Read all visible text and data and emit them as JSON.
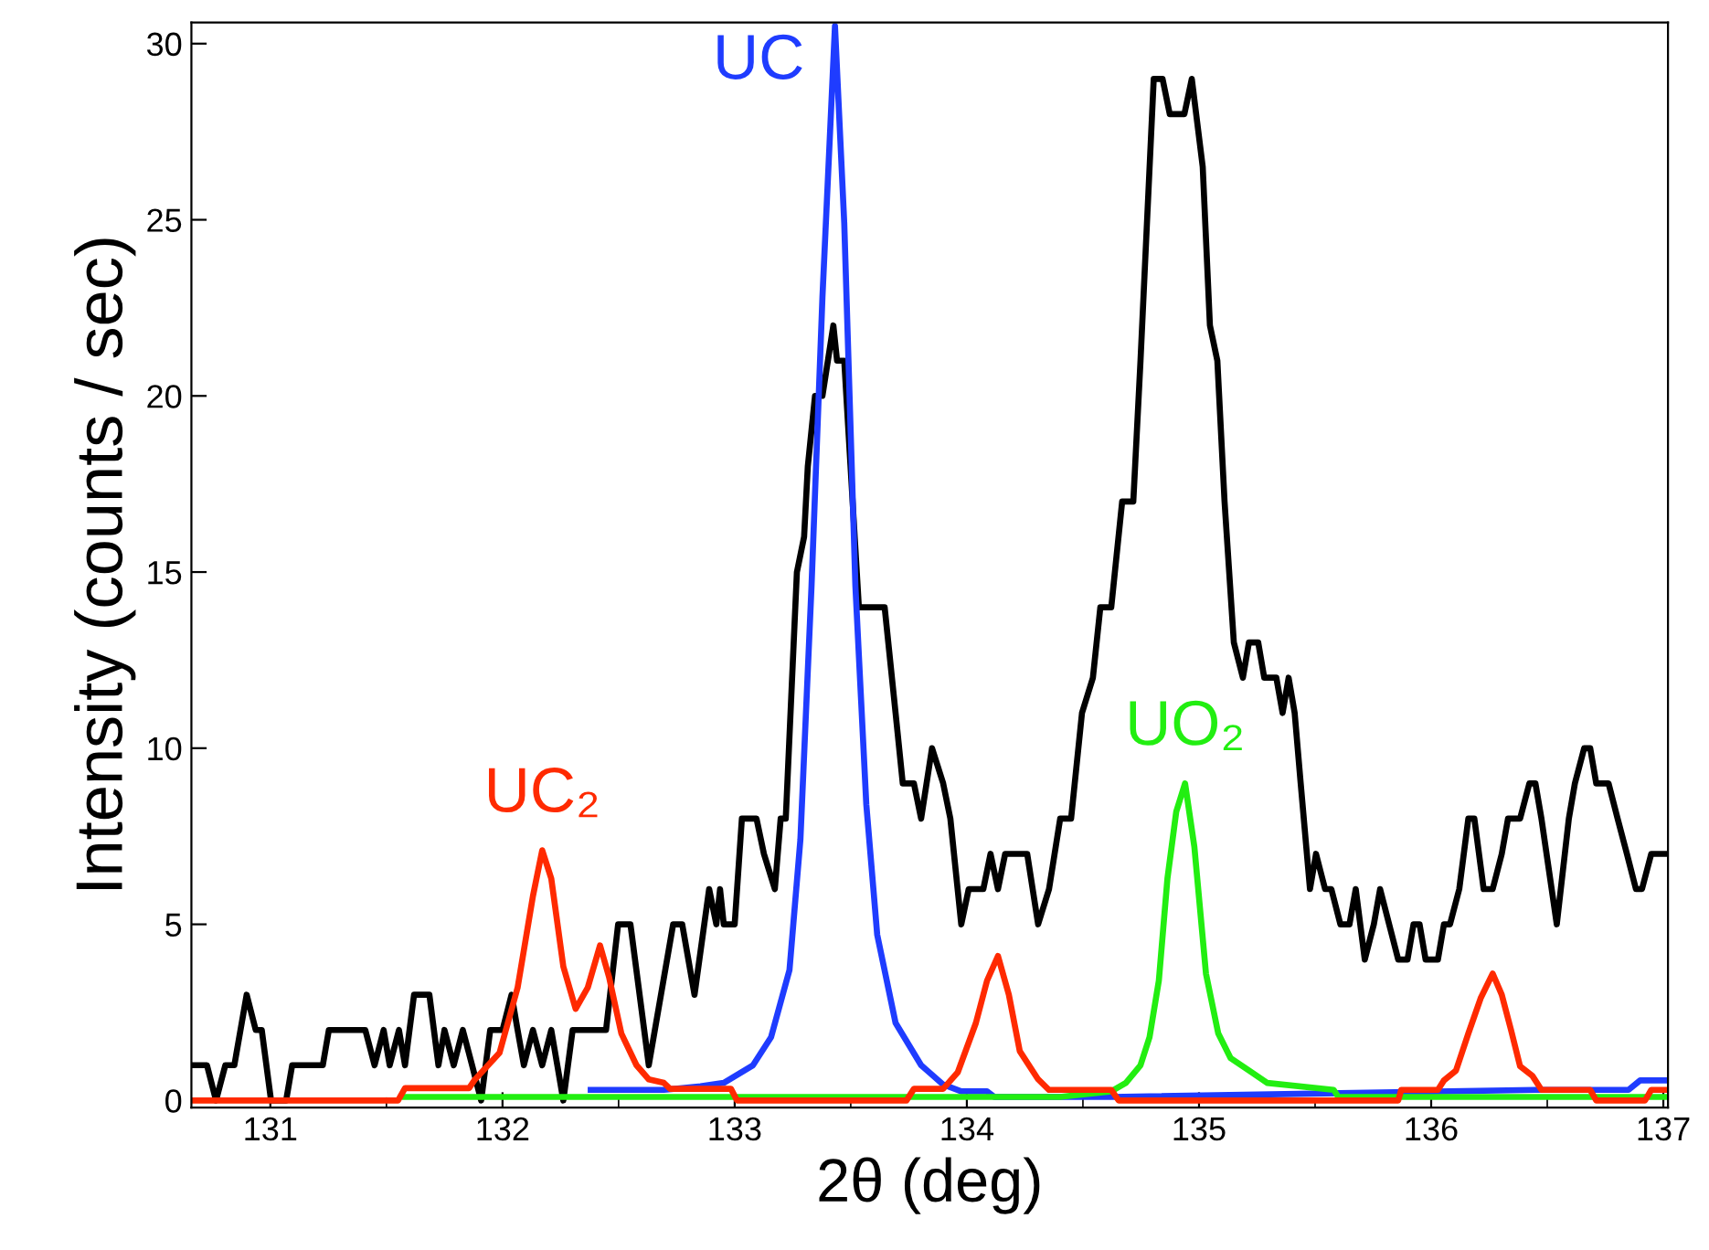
{
  "chart_data": {
    "type": "line",
    "xlabel": "2θ (deg)",
    "ylabel": "Intensity (counts / sec)",
    "xlim": [
      130.66,
      137.02
    ],
    "xticks": [
      131,
      132,
      133,
      134,
      135,
      136,
      137
    ],
    "ylim": [
      -0.2,
      30.6
    ],
    "yticks": [
      0,
      5,
      10,
      15,
      20,
      25,
      30
    ],
    "grid": false,
    "legend": false,
    "marker": "none",
    "line_style": "solid",
    "series": [
      {
        "color": "#000000",
        "x": [
          130.675,
          130.727,
          130.766,
          130.806,
          130.845,
          130.898,
          130.937,
          130.963,
          131.003,
          131.068,
          131.094,
          131.226,
          131.252,
          131.409,
          131.449,
          131.488,
          131.514,
          131.554,
          131.58,
          131.619,
          131.685,
          131.724,
          131.75,
          131.79,
          131.829,
          131.869,
          131.908,
          131.947,
          132.0,
          132.039,
          132.065,
          132.092,
          132.131,
          132.171,
          132.21,
          132.236,
          132.262,
          132.302,
          132.446,
          132.498,
          132.551,
          132.63,
          132.735,
          132.774,
          132.827,
          132.89,
          132.921,
          132.937,
          132.953,
          133.0,
          133.031,
          133.094,
          133.126,
          133.173,
          133.198,
          133.22,
          133.268,
          133.299,
          133.315,
          133.346,
          133.378,
          133.425,
          133.441,
          133.472,
          133.535,
          133.646,
          133.693,
          133.724,
          133.772,
          133.803,
          133.85,
          133.898,
          133.929,
          133.976,
          134.008,
          134.071,
          134.102,
          134.134,
          134.165,
          134.26,
          134.307,
          134.354,
          134.402,
          134.449,
          134.496,
          134.543,
          134.575,
          134.622,
          134.669,
          134.717,
          134.748,
          134.805,
          134.843,
          134.874,
          134.937,
          134.969,
          135.016,
          135.047,
          135.079,
          135.11,
          135.15,
          135.189,
          135.215,
          135.255,
          135.281,
          135.333,
          135.36,
          135.386,
          135.412,
          135.438,
          135.478,
          135.504,
          135.543,
          135.57,
          135.609,
          135.648,
          135.675,
          135.714,
          135.753,
          135.78,
          135.819,
          135.858,
          135.898,
          135.924,
          135.95,
          135.976,
          136.029,
          136.055,
          136.081,
          136.121,
          136.16,
          136.186,
          136.226,
          136.265,
          136.304,
          136.331,
          136.383,
          136.423,
          136.449,
          136.475,
          136.541,
          136.593,
          136.619,
          136.659,
          136.685,
          136.711,
          136.764,
          136.803,
          136.843,
          136.882,
          136.908,
          136.948,
          137.013
        ],
        "values": [
          1,
          1,
          0,
          1,
          1,
          3,
          2,
          2,
          0,
          0,
          1,
          1,
          2,
          2,
          1,
          2,
          1,
          2,
          1,
          3,
          3,
          1,
          2,
          1,
          2,
          1,
          0,
          2,
          2,
          3,
          2,
          1,
          2,
          1,
          2,
          1,
          0,
          2,
          2,
          5,
          5,
          1,
          5,
          5,
          3,
          6,
          5,
          6,
          5,
          5,
          8,
          8,
          7,
          6,
          8,
          8,
          15,
          16,
          18,
          20,
          20,
          22,
          21,
          21,
          14,
          14,
          11,
          9,
          9,
          8,
          10,
          9,
          8,
          5,
          6,
          6,
          7,
          6,
          7,
          7,
          5,
          6,
          8,
          8,
          11,
          12,
          14,
          14,
          17,
          17,
          21,
          29,
          29,
          28,
          28,
          29,
          26.5,
          22,
          21,
          17,
          13,
          12,
          13,
          13,
          12,
          12,
          11,
          12,
          11,
          9,
          6,
          7,
          6,
          6,
          5,
          5,
          6,
          4,
          5,
          6,
          5,
          4,
          4,
          5,
          5,
          4,
          4,
          5,
          5,
          6,
          8,
          8,
          6,
          6,
          7,
          8,
          8,
          9,
          9,
          8,
          5,
          8,
          9,
          10,
          10,
          9,
          9,
          8,
          7,
          6,
          6,
          7,
          7
        ]
      },
      {
        "name": "UC",
        "color": "#1f3cff",
        "x": [
          132.38,
          132.695,
          132.853,
          132.953,
          133.079,
          133.157,
          133.236,
          133.283,
          133.331,
          133.378,
          133.432,
          133.472,
          133.52,
          133.567,
          133.614,
          133.693,
          133.803,
          133.898,
          133.976,
          134.087,
          134.118,
          134.622,
          136.449,
          136.85,
          136.9,
          137.013
        ],
        "values": [
          0.3,
          0.3,
          0.4,
          0.5,
          1.0,
          1.8,
          3.7,
          7.4,
          14.6,
          22.8,
          30.5,
          24.9,
          14.6,
          8.4,
          4.7,
          2.2,
          1.0,
          0.45,
          0.26,
          0.26,
          0.1,
          0.1,
          0.3,
          0.3,
          0.57,
          0.57
        ]
      },
      {
        "name": "UO₂",
        "color": "#22ee11",
        "x": [
          131.58,
          134.4,
          134.622,
          134.685,
          134.748,
          134.787,
          134.827,
          134.864,
          134.902,
          134.94,
          134.98,
          135.03,
          135.083,
          135.136,
          135.215,
          135.293,
          135.58,
          135.6,
          137.013
        ],
        "values": [
          0.1,
          0.1,
          0.26,
          0.5,
          1.0,
          1.8,
          3.4,
          6.3,
          8.2,
          9.0,
          7.2,
          3.6,
          1.9,
          1.2,
          0.85,
          0.5,
          0.3,
          0.1,
          0.1
        ]
      },
      {
        "name": "UC₂",
        "color": "#ff2a00",
        "x": [
          130.66,
          131.55,
          131.58,
          131.856,
          131.882,
          131.987,
          132.065,
          132.131,
          132.171,
          132.21,
          132.262,
          132.315,
          132.367,
          132.42,
          132.459,
          132.512,
          132.577,
          132.63,
          132.695,
          132.722,
          132.984,
          133.01,
          133.74,
          133.772,
          133.898,
          133.961,
          134.039,
          134.087,
          134.134,
          134.181,
          134.228,
          134.307,
          134.354,
          134.622,
          134.654,
          135.858,
          135.871,
          136.029,
          136.055,
          136.107,
          136.16,
          136.213,
          136.265,
          136.304,
          136.344,
          136.383,
          136.436,
          136.475,
          136.685,
          136.711,
          136.921,
          136.948,
          137.013
        ],
        "values": [
          0,
          0,
          0.35,
          0.35,
          0.6,
          1.35,
          3.2,
          5.8,
          7.1,
          6.3,
          3.8,
          2.6,
          3.2,
          4.4,
          3.5,
          1.9,
          1.0,
          0.6,
          0.5,
          0.33,
          0.33,
          0,
          0,
          0.33,
          0.33,
          0.8,
          2.2,
          3.4,
          4.1,
          3.0,
          1.4,
          0.6,
          0.3,
          0.3,
          0,
          0,
          0.3,
          0.3,
          0.57,
          0.85,
          1.9,
          2.9,
          3.6,
          3.0,
          2.0,
          0.97,
          0.7,
          0.3,
          0.3,
          0,
          0,
          0.3,
          0.3
        ]
      }
    ]
  }
}
